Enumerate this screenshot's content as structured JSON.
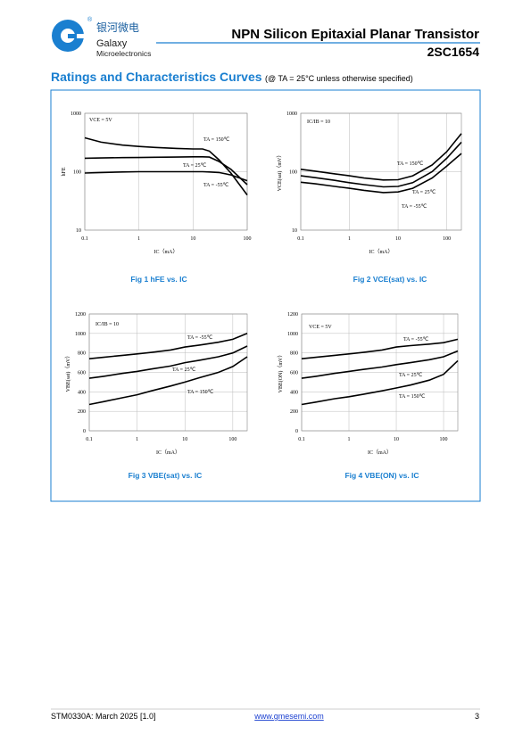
{
  "header": {
    "brand_cn": "银河微电",
    "brand": "Galaxy",
    "brand_sub": "Microelectronics",
    "title": "NPN Silicon Epitaxial Planar Transistor",
    "part": "2SC1654"
  },
  "section": {
    "title": "Ratings and Characteristics Curves",
    "condition": "(@ TA = 25°C unless otherwise specified)"
  },
  "chart_data": [
    {
      "type": "line",
      "caption": "Fig 1   hFE vs. IC",
      "annotation": "VCE = 5V",
      "xlabel": "IC（mA）",
      "ylabel": "hFE",
      "xscale": "log",
      "yscale": "log",
      "grid": true,
      "x": [
        0.1,
        0.2,
        0.5,
        1,
        2,
        5,
        10,
        15,
        20,
        30,
        50,
        100
      ],
      "xlim": [
        0.1,
        100
      ],
      "xticks": [
        0.1,
        1,
        10,
        100
      ],
      "ylim": [
        10,
        1000
      ],
      "yticks": [
        10,
        100,
        1000
      ],
      "series": [
        {
          "name": "TA = 150℃",
          "color": "#000000",
          "values": [
            380,
            320,
            285,
            270,
            260,
            250,
            245,
            245,
            225,
            160,
            95,
            40
          ]
        },
        {
          "name": "TA = 25℃",
          "color": "#000000",
          "values": [
            170,
            172,
            174,
            175,
            177,
            178,
            180,
            180,
            178,
            150,
            110,
            60
          ]
        },
        {
          "name": "TA = -55℃",
          "color": "#000000",
          "values": [
            95,
            97,
            99,
            100,
            100,
            100,
            100,
            100,
            99,
            97,
            88,
            70
          ]
        }
      ]
    },
    {
      "type": "line",
      "caption": "Fig 2   VCE(sat) vs. IC",
      "annotation": "IC/IB = 10",
      "xlabel": "IC（mA）",
      "ylabel": "VCE(sat)（mV）",
      "xscale": "log",
      "yscale": "log",
      "grid": true,
      "x": [
        0.1,
        0.2,
        0.5,
        1,
        2,
        5,
        10,
        20,
        50,
        100,
        200
      ],
      "xlim": [
        0.1,
        200
      ],
      "xticks": [
        0.1,
        1,
        10,
        100
      ],
      "ylim": [
        10,
        1000
      ],
      "yticks": [
        10,
        100,
        1000
      ],
      "series": [
        {
          "name": "TA = 150℃",
          "color": "#000000",
          "values": [
            110,
            102,
            92,
            85,
            78,
            72,
            73,
            85,
            130,
            220,
            450
          ]
        },
        {
          "name": "TA = 25℃",
          "color": "#000000",
          "values": [
            85,
            79,
            71,
            65,
            60,
            55,
            56,
            65,
            100,
            170,
            320
          ]
        },
        {
          "name": "TA = -55℃",
          "color": "#000000",
          "values": [
            66,
            62,
            56,
            52,
            48,
            44,
            45,
            52,
            78,
            125,
            205
          ]
        }
      ]
    },
    {
      "type": "line",
      "caption": "Fig 3   VBE(sat) vs. IC",
      "annotation": "IC/IB = 10",
      "xlabel": "IC（mA）",
      "ylabel": "VBE(sat)（mV）",
      "xscale": "log",
      "yscale": "linear",
      "grid": true,
      "x": [
        0.1,
        0.2,
        0.5,
        1,
        2,
        5,
        10,
        20,
        50,
        100,
        200
      ],
      "xlim": [
        0.1,
        200
      ],
      "xticks": [
        0.1,
        1,
        10,
        100
      ],
      "ylim": [
        0,
        1200
      ],
      "yticks": [
        0,
        200,
        400,
        600,
        800,
        1000,
        1200
      ],
      "series": [
        {
          "name": "TA = -55℃",
          "color": "#000000",
          "values": [
            740,
            755,
            775,
            790,
            805,
            830,
            860,
            880,
            910,
            940,
            1000
          ]
        },
        {
          "name": "TA = 25℃",
          "color": "#000000",
          "values": [
            540,
            560,
            590,
            610,
            635,
            665,
            700,
            725,
            760,
            800,
            870
          ]
        },
        {
          "name": "TA = 150℃",
          "color": "#000000",
          "values": [
            270,
            300,
            340,
            370,
            410,
            460,
            500,
            545,
            600,
            660,
            760
          ]
        }
      ]
    },
    {
      "type": "line",
      "caption": "Fig 4   VBE(ON) vs. IC",
      "annotation": "VCE = 5V",
      "xlabel": "IC（mA）",
      "ylabel": "VBE(ON)（mV）",
      "xscale": "log",
      "yscale": "linear",
      "grid": true,
      "x": [
        0.1,
        0.2,
        0.5,
        1,
        2,
        5,
        10,
        20,
        50,
        100,
        200
      ],
      "xlim": [
        0.1,
        200
      ],
      "xticks": [
        0.1,
        1,
        10,
        100
      ],
      "ylim": [
        0,
        1200
      ],
      "yticks": [
        0,
        200,
        400,
        600,
        800,
        1000,
        1200
      ],
      "series": [
        {
          "name": "TA = -55℃",
          "color": "#000000",
          "values": [
            740,
            755,
            775,
            790,
            805,
            830,
            860,
            875,
            890,
            905,
            940
          ]
        },
        {
          "name": "TA = 25℃",
          "color": "#000000",
          "values": [
            540,
            560,
            590,
            610,
            630,
            655,
            680,
            700,
            730,
            760,
            820
          ]
        },
        {
          "name": "TA = 150℃",
          "color": "#000000",
          "values": [
            270,
            295,
            330,
            350,
            375,
            410,
            440,
            470,
            520,
            580,
            720
          ]
        }
      ]
    }
  ],
  "footer": {
    "doc": "STM0330A: March 2025 [1.0]",
    "url": "www.gmesemi.com",
    "page": 3
  }
}
